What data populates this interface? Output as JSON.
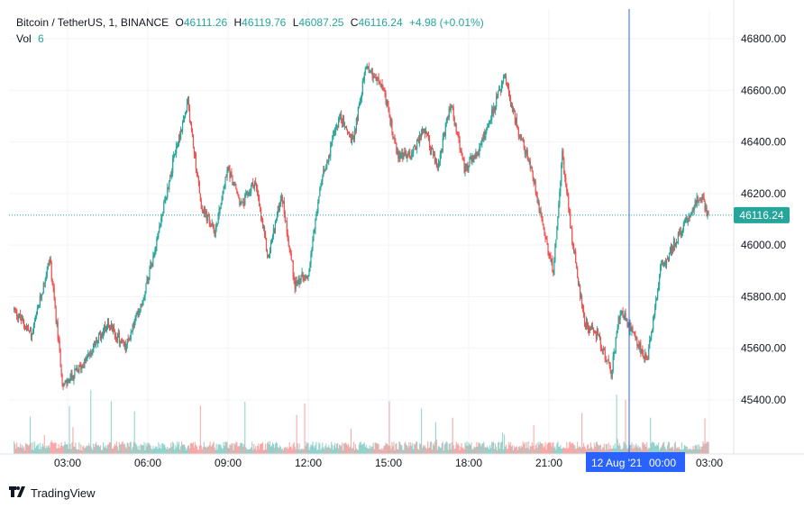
{
  "legend": {
    "symbol": "Bitcoin / TetherUS, 1, BINANCE",
    "open_label": "O",
    "open": "46111.26",
    "high_label": "H",
    "high": "46119.76",
    "low_label": "L",
    "low": "46087.25",
    "close_label": "C",
    "close": "46116.24",
    "change": "+4.98 (+0.01%)",
    "vol_label": "Vol",
    "vol": "6"
  },
  "price_label": "46116.24",
  "crosshair_date": "12 Aug '21",
  "crosshair_time": "00:00",
  "branding": "TradingView",
  "colors": {
    "up": "#26a69a",
    "down": "#ef5350",
    "crosshair": "#2962ff",
    "grid": "#f0f3fa"
  },
  "chart_data": {
    "type": "candlestick",
    "series_name": "Bitcoin / TetherUS, 1, BINANCE",
    "y_ticks": [
      "46800.00",
      "46600.00",
      "46400.00",
      "46200.00",
      "46000.00",
      "45800.00",
      "45600.00",
      "45400.00"
    ],
    "x_ticks": [
      "03:00",
      "06:00",
      "09:00",
      "12:00",
      "15:00",
      "18:00",
      "21:00",
      "00:00",
      "03:00"
    ],
    "ylim": [
      45260,
      46880
    ],
    "last_price": 46116.24,
    "approx_path": {
      "time": [
        "01:00",
        "01:40",
        "02:20",
        "02:50",
        "03:40",
        "04:30",
        "05:10",
        "05:50",
        "06:30",
        "07:00",
        "07:30",
        "08:00",
        "08:30",
        "09:00",
        "09:30",
        "10:00",
        "10:30",
        "11:00",
        "11:30",
        "12:00",
        "12:30",
        "13:10",
        "13:40",
        "14:10",
        "14:50",
        "15:20",
        "15:50",
        "16:20",
        "16:50",
        "17:20",
        "17:50",
        "18:20",
        "18:50",
        "19:20",
        "19:50",
        "20:20",
        "20:50",
        "21:10",
        "21:30",
        "21:50",
        "22:20",
        "22:50",
        "23:20",
        "23:40",
        "00:10",
        "00:40",
        "01:10",
        "01:40",
        "02:10",
        "02:40",
        "03:00"
      ],
      "price": [
        45750,
        45650,
        45950,
        45450,
        45550,
        45700,
        45600,
        45800,
        46100,
        46350,
        46550,
        46150,
        46050,
        46300,
        46150,
        46250,
        45950,
        46200,
        45850,
        45900,
        46250,
        46500,
        46400,
        46700,
        46600,
        46350,
        46350,
        46450,
        46300,
        46550,
        46300,
        46350,
        46500,
        46650,
        46450,
        46300,
        46050,
        45900,
        46350,
        46050,
        45700,
        45650,
        45500,
        45750,
        45650,
        45550,
        45900,
        46000,
        46100,
        46200,
        46100
      ]
    }
  }
}
